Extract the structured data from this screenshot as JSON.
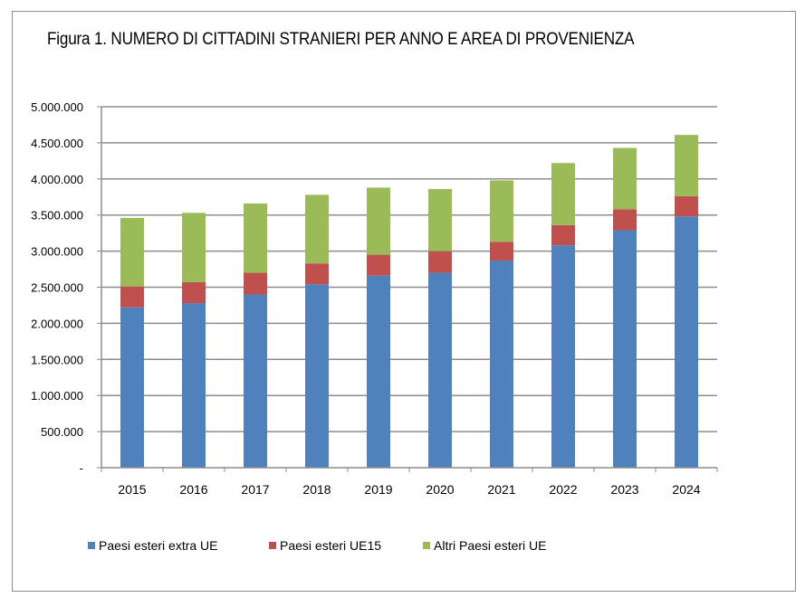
{
  "chart_data": {
    "type": "bar",
    "stacked": true,
    "title": "Figura 1. NUMERO DI CITTADINI STRANIERI PER ANNO E AREA DI PROVENIENZA",
    "xlabel": "",
    "ylabel": "",
    "categories": [
      "2015",
      "2016",
      "2017",
      "2018",
      "2019",
      "2020",
      "2021",
      "2022",
      "2023",
      "2024"
    ],
    "ylim": [
      0,
      5000000
    ],
    "yticks": [
      0,
      500000,
      1000000,
      1500000,
      2000000,
      2500000,
      3000000,
      3500000,
      4000000,
      4500000,
      5000000
    ],
    "ytick_labels": [
      "-",
      "500.000",
      "1.000.000",
      "1.500.000",
      "2.000.000",
      "2.500.000",
      "3.000.000",
      "3.500.000",
      "4.000.000",
      "4.500.000",
      "5.000.000"
    ],
    "grid": true,
    "legend_position": "bottom",
    "series": [
      {
        "name": "Paesi esteri extra UE",
        "color": "#4f81bd",
        "values": [
          2220000,
          2280000,
          2400000,
          2540000,
          2660000,
          2700000,
          2870000,
          3080000,
          3290000,
          3480000
        ]
      },
      {
        "name": "Paesi esteri UE15",
        "color": "#c0504d",
        "values": [
          290000,
          290000,
          300000,
          290000,
          290000,
          300000,
          260000,
          280000,
          290000,
          280000
        ]
      },
      {
        "name": "Altri Paesi esteri UE",
        "color": "#9bbb59",
        "values": [
          950000,
          960000,
          960000,
          950000,
          930000,
          860000,
          850000,
          860000,
          850000,
          850000
        ]
      }
    ]
  }
}
